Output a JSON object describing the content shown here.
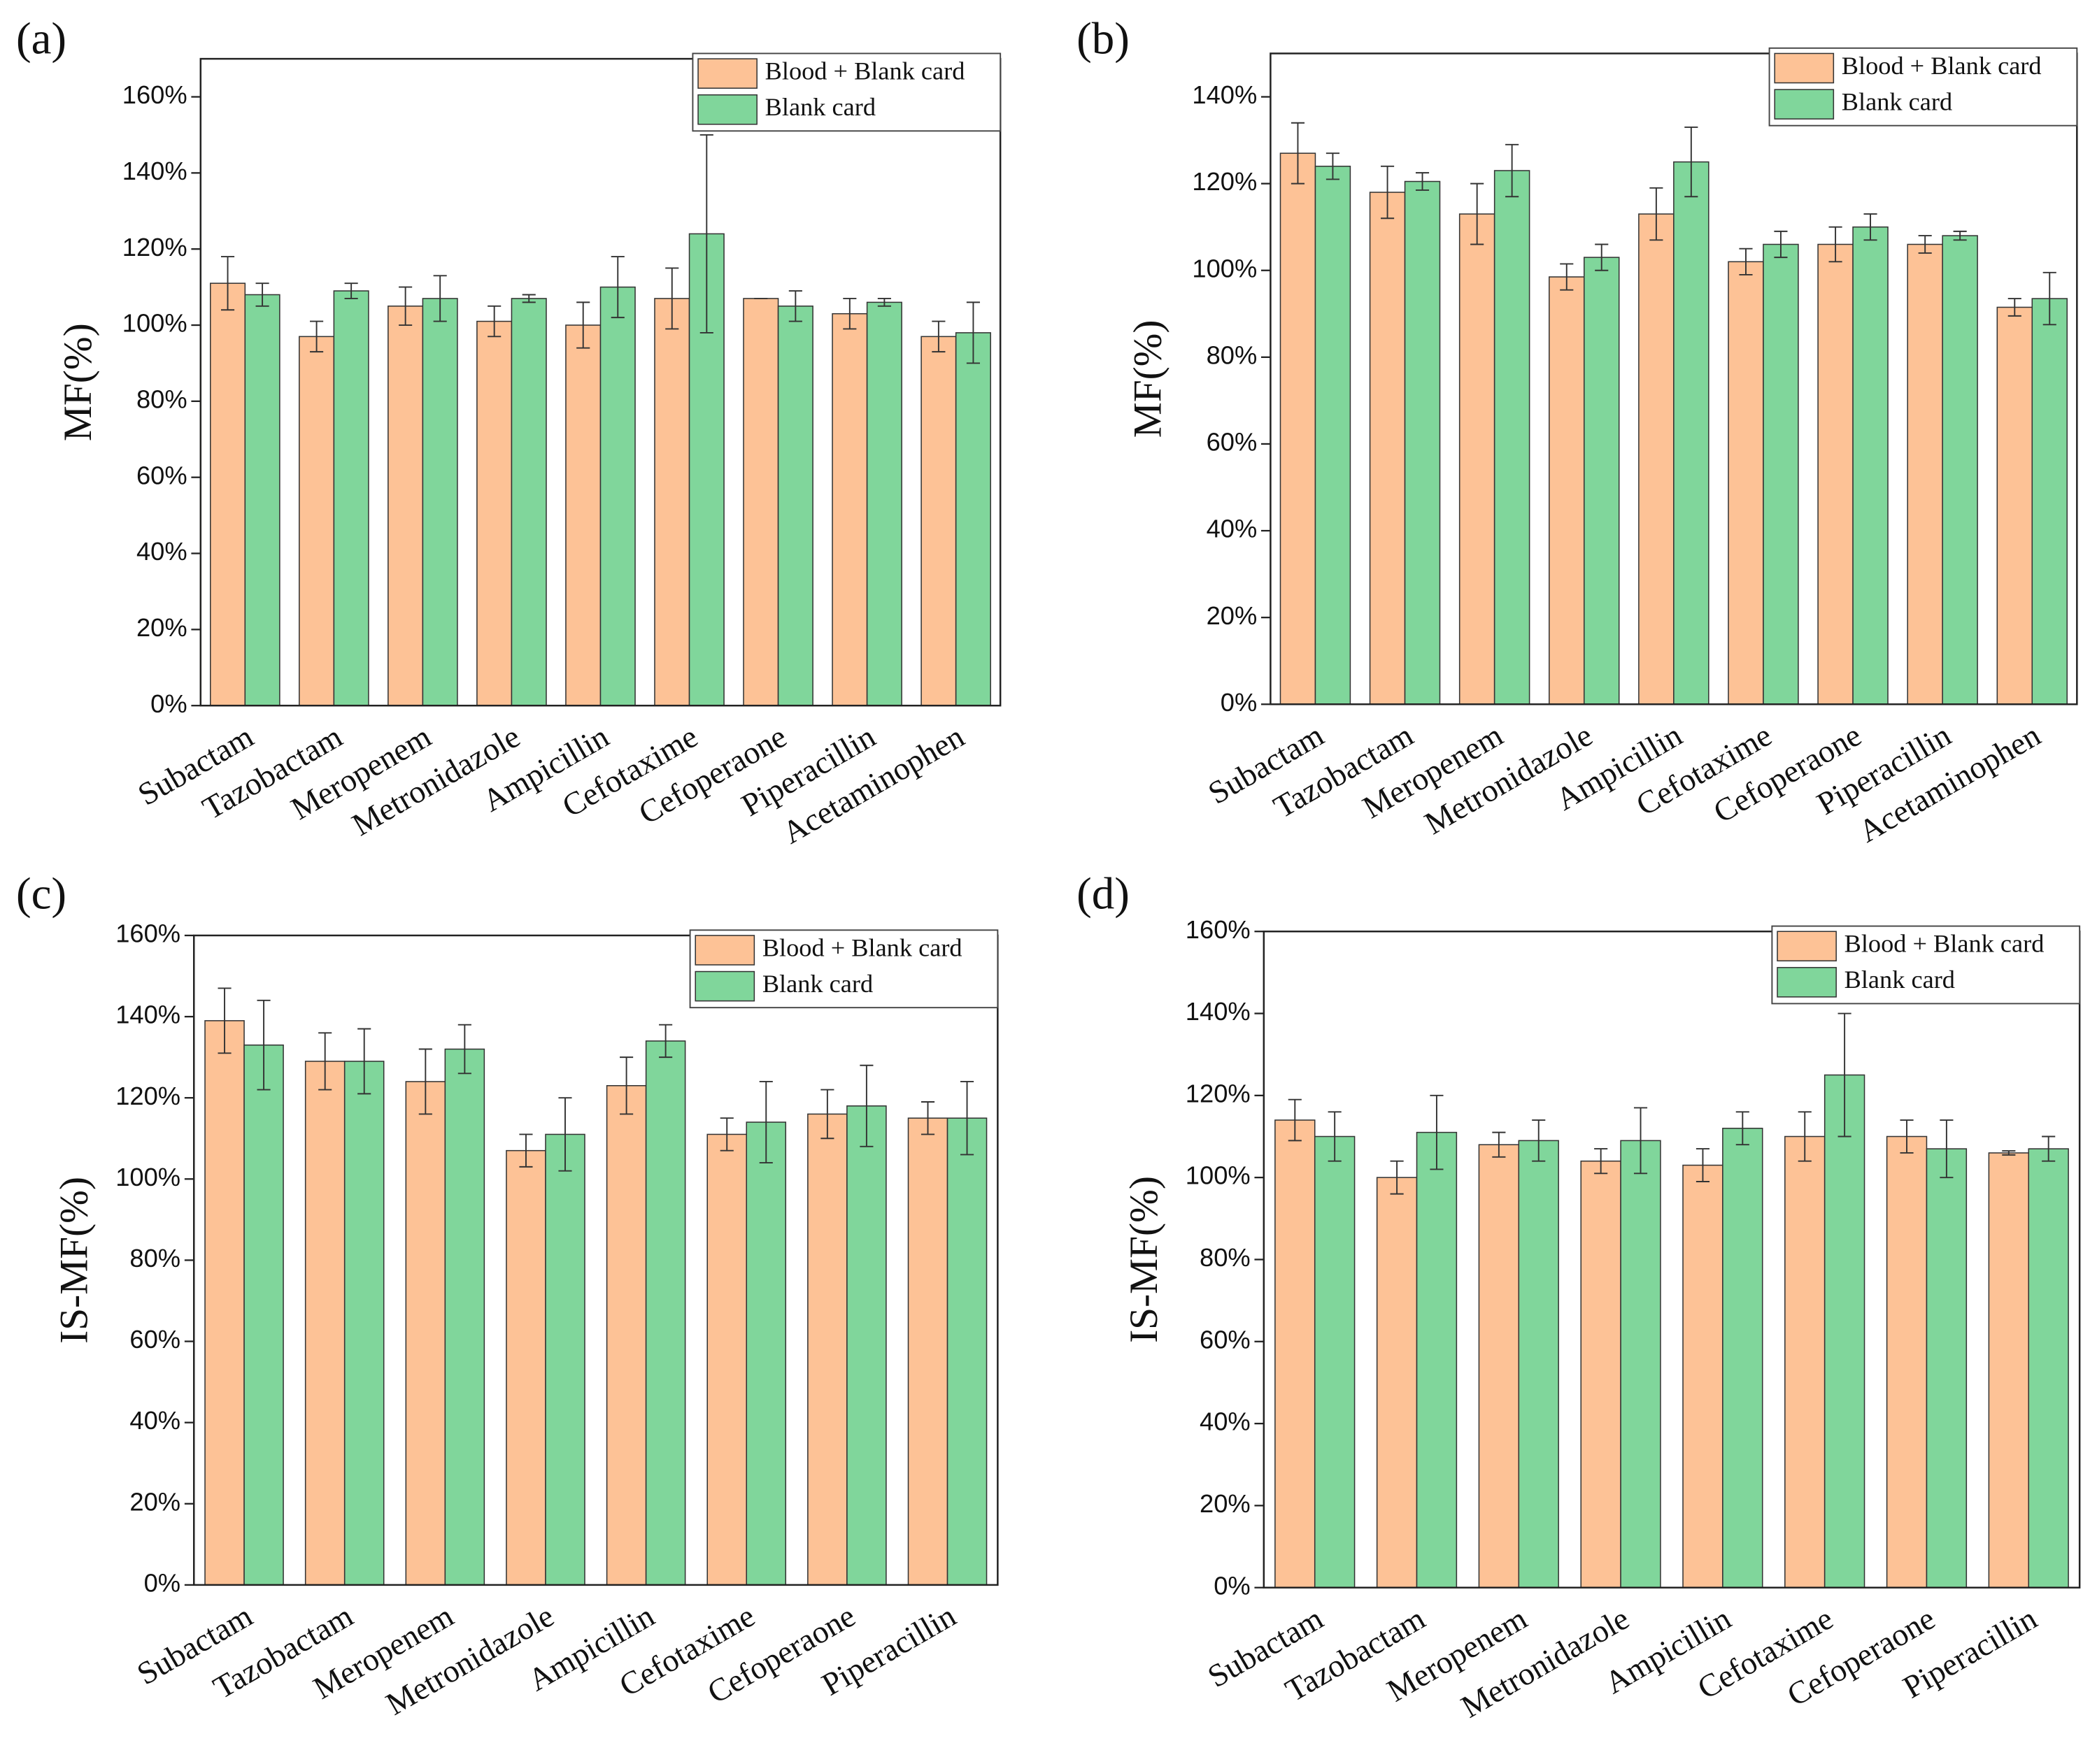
{
  "chart_data": [
    {
      "type": "bar",
      "panel": "(a)",
      "y_label": "MF(%)",
      "categories": [
        "Subactam",
        "Tazobactam",
        "Meropenem",
        "Metronidazole",
        "Ampicillin",
        "Cefotaxime",
        "Cefoperaone",
        "Piperacillin",
        "Acetaminophen"
      ],
      "series": [
        {
          "name": "Blood + Blank card",
          "color": "#fdc296",
          "values": [
            111,
            97,
            105,
            101,
            100,
            107,
            107,
            103,
            97
          ],
          "errors": [
            7,
            4,
            5,
            4,
            6,
            8,
            0,
            4,
            4
          ]
        },
        {
          "name": "Blank card",
          "color": "#80d69b",
          "values": [
            108,
            109,
            107,
            107,
            110,
            124,
            105,
            106,
            98
          ],
          "errors": [
            3,
            2,
            6,
            1,
            8,
            26,
            4,
            1,
            8
          ]
        }
      ],
      "ylim": [
        0,
        170
      ],
      "yticks": [
        {
          "value": 0,
          "label": "0%"
        },
        {
          "value": 20,
          "label": "20%"
        },
        {
          "value": 40,
          "label": "40%"
        },
        {
          "value": 60,
          "label": "60%"
        },
        {
          "value": 80,
          "label": "80%"
        },
        {
          "value": 100,
          "label": "100%"
        },
        {
          "value": 120,
          "label": "120%"
        },
        {
          "value": 140,
          "label": "140%"
        },
        {
          "value": 160,
          "label": "160%"
        }
      ],
      "legend": "upper right"
    },
    {
      "type": "bar",
      "panel": "(b)",
      "y_label": "MF(%)",
      "categories": [
        "Subactam",
        "Tazobactam",
        "Meropenem",
        "Metronidazole",
        "Ampicillin",
        "Cefotaxime",
        "Cefoperaone",
        "Piperacillin",
        "Acetaminophen"
      ],
      "series": [
        {
          "name": "Blood + Blank card",
          "color": "#fdc296",
          "values": [
            127,
            118,
            113,
            98.5,
            113,
            102,
            106,
            106,
            91.5
          ],
          "errors": [
            7,
            6,
            7,
            3,
            6,
            3,
            4,
            2,
            2
          ]
        },
        {
          "name": "Blank card",
          "color": "#80d69b",
          "values": [
            124,
            120.5,
            123,
            103,
            125,
            106,
            110,
            108,
            93.5
          ],
          "errors": [
            3,
            2,
            6,
            3,
            8,
            3,
            3,
            1,
            6
          ]
        }
      ],
      "ylim": [
        0,
        150
      ],
      "yticks": [
        {
          "value": 0,
          "label": "0%"
        },
        {
          "value": 20,
          "label": "20%"
        },
        {
          "value": 40,
          "label": "40%"
        },
        {
          "value": 60,
          "label": "60%"
        },
        {
          "value": 80,
          "label": "80%"
        },
        {
          "value": 100,
          "label": "100%"
        },
        {
          "value": 120,
          "label": "120%"
        },
        {
          "value": 140,
          "label": "140%"
        }
      ],
      "legend": "upper right"
    },
    {
      "type": "bar",
      "panel": "(c)",
      "y_label": "IS-MF(%)",
      "categories": [
        "Subactam",
        "Tazobactam",
        "Meropenem",
        "Metronidazole",
        "Ampicillin",
        "Cefotaxime",
        "Cefoperaone",
        "Piperacillin"
      ],
      "series": [
        {
          "name": "Blood + Blank card",
          "color": "#fdc296",
          "values": [
            139,
            129,
            124,
            107,
            123,
            111,
            116,
            115
          ],
          "errors": [
            8,
            7,
            8,
            4,
            7,
            4,
            6,
            4
          ]
        },
        {
          "name": "Blank card",
          "color": "#80d69b",
          "values": [
            133,
            129,
            132,
            111,
            134,
            114,
            118,
            115
          ],
          "errors": [
            11,
            8,
            6,
            9,
            4,
            10,
            10,
            9
          ]
        }
      ],
      "ylim": [
        0,
        160
      ],
      "yticks": [
        {
          "value": 0,
          "label": "0%"
        },
        {
          "value": 20,
          "label": "20%"
        },
        {
          "value": 40,
          "label": "40%"
        },
        {
          "value": 60,
          "label": "60%"
        },
        {
          "value": 80,
          "label": "80%"
        },
        {
          "value": 100,
          "label": "100%"
        },
        {
          "value": 120,
          "label": "120%"
        },
        {
          "value": 140,
          "label": "140%"
        },
        {
          "value": 160,
          "label": "160%"
        }
      ],
      "legend": "upper right"
    },
    {
      "type": "bar",
      "panel": "(d)",
      "y_label": "IS-MF(%)",
      "categories": [
        "Subactam",
        "Tazobactam",
        "Meropenem",
        "Metronidazole",
        "Ampicillin",
        "Cefotaxime",
        "Cefoperaone",
        "Piperacillin"
      ],
      "series": [
        {
          "name": "Blood + Blank card",
          "color": "#fdc296",
          "values": [
            114,
            100,
            108,
            104,
            103,
            110,
            110,
            106
          ],
          "errors": [
            5,
            4,
            3,
            3,
            4,
            6,
            4,
            0.5
          ]
        },
        {
          "name": "Blank card",
          "color": "#80d69b",
          "values": [
            110,
            111,
            109,
            109,
            112,
            125,
            107,
            107
          ],
          "errors": [
            6,
            9,
            5,
            8,
            4,
            15,
            7,
            3
          ]
        }
      ],
      "ylim": [
        0,
        160
      ],
      "yticks": [
        {
          "value": 0,
          "label": "0%"
        },
        {
          "value": 20,
          "label": "20%"
        },
        {
          "value": 40,
          "label": "40%"
        },
        {
          "value": 60,
          "label": "60%"
        },
        {
          "value": 80,
          "label": "80%"
        },
        {
          "value": 100,
          "label": "100%"
        },
        {
          "value": 120,
          "label": "120%"
        },
        {
          "value": 140,
          "label": "140%"
        },
        {
          "value": 160,
          "label": "160%"
        }
      ],
      "legend": "upper right"
    }
  ]
}
